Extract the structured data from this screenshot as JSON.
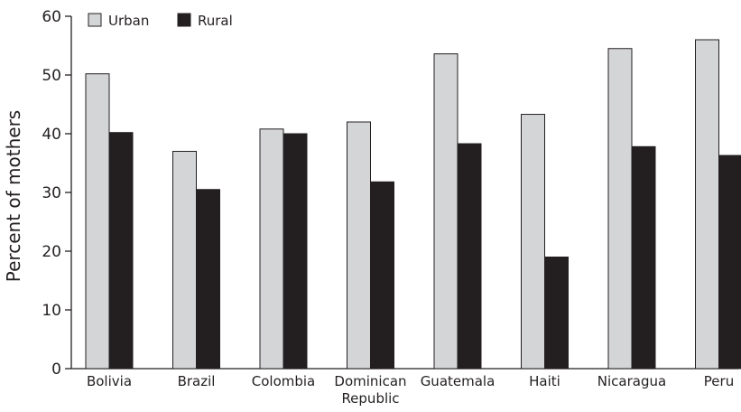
{
  "chart_data": {
    "type": "bar",
    "categories": [
      [
        "Bolivia"
      ],
      [
        "Brazil"
      ],
      [
        "Colombia"
      ],
      [
        "Dominican",
        "Republic"
      ],
      [
        "Guatemala"
      ],
      [
        "Haiti"
      ],
      [
        "Nicaragua"
      ],
      [
        "Peru"
      ]
    ],
    "series": [
      {
        "name": "Urban",
        "color": "#d4d5d7",
        "values": [
          50.2,
          37.0,
          40.8,
          42.0,
          53.6,
          43.3,
          54.5,
          56.0
        ]
      },
      {
        "name": "Rural",
        "color": "#231f20",
        "values": [
          40.2,
          30.5,
          40.0,
          31.8,
          38.3,
          19.0,
          37.8,
          36.3
        ]
      }
    ],
    "ylabel": "Percent of mothers",
    "ylim": [
      0,
      60
    ],
    "yticks": [
      0,
      10,
      20,
      30,
      40,
      50,
      60
    ],
    "legend_position": "top-left",
    "grid": false
  }
}
